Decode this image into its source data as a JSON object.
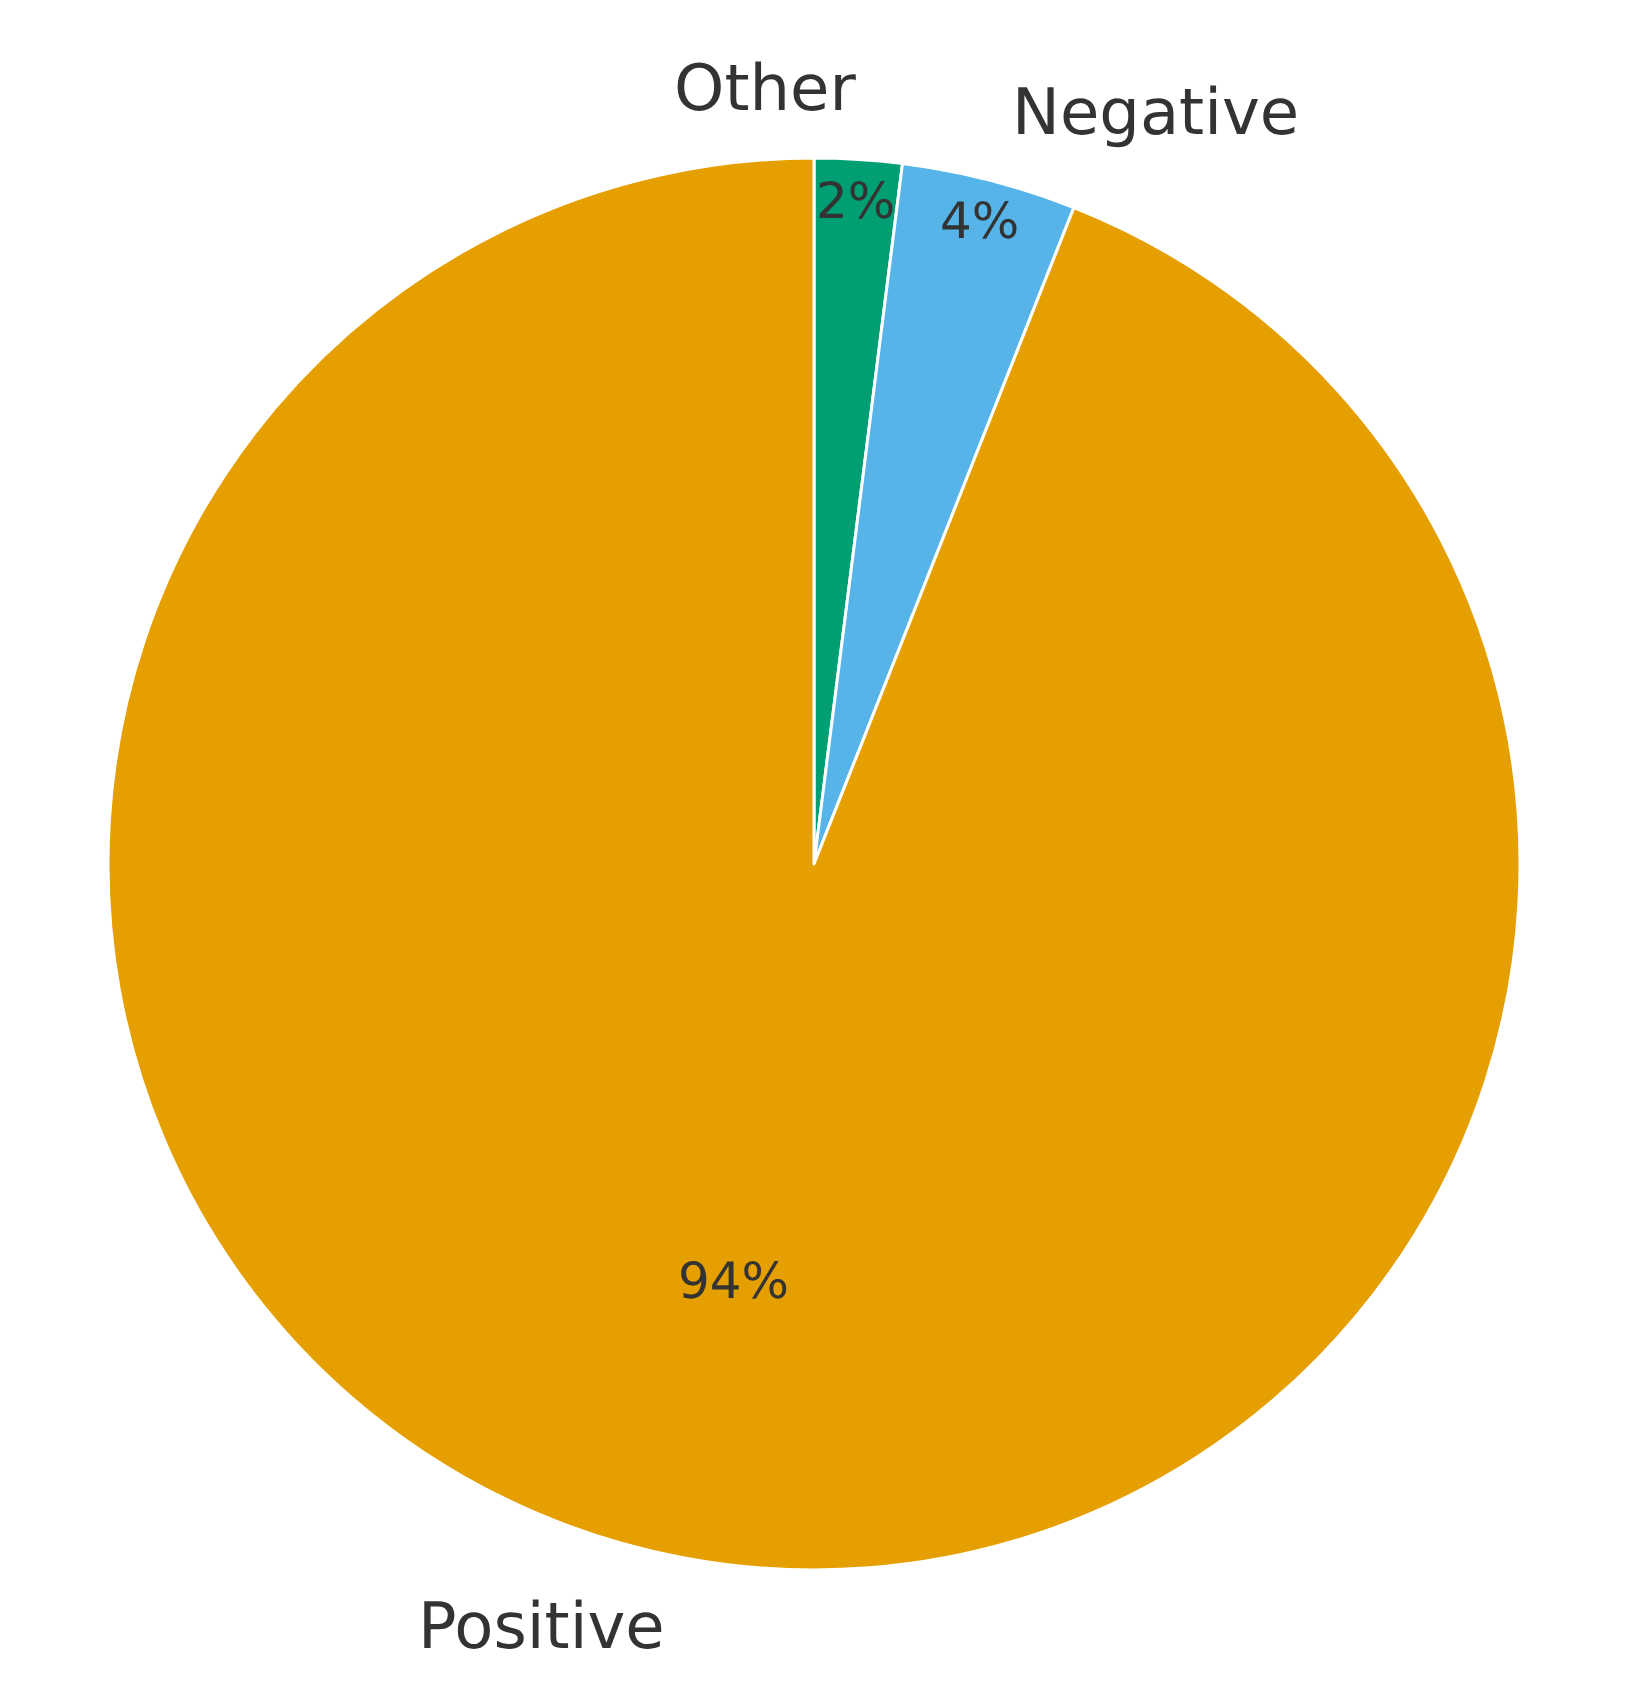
{
  "chart_data": {
    "type": "pie",
    "categories": [
      "Other",
      "Negative",
      "Positive"
    ],
    "values": [
      2,
      4,
      94
    ],
    "colors": [
      "#009e73",
      "#56b4e9",
      "#e69f00"
    ],
    "value_labels": [
      "2%",
      "4%",
      "94%"
    ],
    "legend": false
  }
}
